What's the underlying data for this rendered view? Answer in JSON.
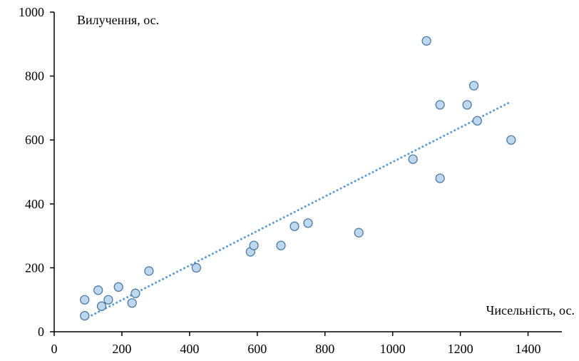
{
  "chart_data": {
    "type": "scatter",
    "title": "",
    "xlabel": "Чисельність, ос.",
    "ylabel": "Вилучення, ос.",
    "xlim": [
      0,
      1500
    ],
    "ylim": [
      0,
      1000
    ],
    "x_ticks": [
      "0",
      "200",
      "400",
      "600",
      "800",
      "1000",
      "1200",
      "1400"
    ],
    "y_ticks": [
      "0",
      "200",
      "400",
      "600",
      "800",
      "1000"
    ],
    "grid": false,
    "legend": "none",
    "series": [
      {
        "points": [
          {
            "x": 90,
            "y": 50
          },
          {
            "x": 90,
            "y": 100
          },
          {
            "x": 130,
            "y": 130
          },
          {
            "x": 140,
            "y": 80
          },
          {
            "x": 160,
            "y": 100
          },
          {
            "x": 190,
            "y": 140
          },
          {
            "x": 230,
            "y": 90
          },
          {
            "x": 240,
            "y": 120
          },
          {
            "x": 280,
            "y": 190
          },
          {
            "x": 420,
            "y": 200
          },
          {
            "x": 580,
            "y": 250
          },
          {
            "x": 590,
            "y": 270
          },
          {
            "x": 670,
            "y": 270
          },
          {
            "x": 710,
            "y": 330
          },
          {
            "x": 750,
            "y": 340
          },
          {
            "x": 900,
            "y": 310
          },
          {
            "x": 1060,
            "y": 540
          },
          {
            "x": 1100,
            "y": 910
          },
          {
            "x": 1140,
            "y": 480
          },
          {
            "x": 1140,
            "y": 710
          },
          {
            "x": 1220,
            "y": 710
          },
          {
            "x": 1240,
            "y": 770
          },
          {
            "x": 1250,
            "y": 660
          },
          {
            "x": 1350,
            "y": 600
          }
        ],
        "marker_fill": "#bdd7ee",
        "marker_stroke": "#41719c"
      }
    ],
    "trendline": {
      "type": "linear",
      "from": {
        "x": 90,
        "y": 40
      },
      "to": {
        "x": 1350,
        "y": 720
      },
      "color": "#5b9bd5",
      "style": "dotted"
    },
    "axis_color": "#000000"
  }
}
